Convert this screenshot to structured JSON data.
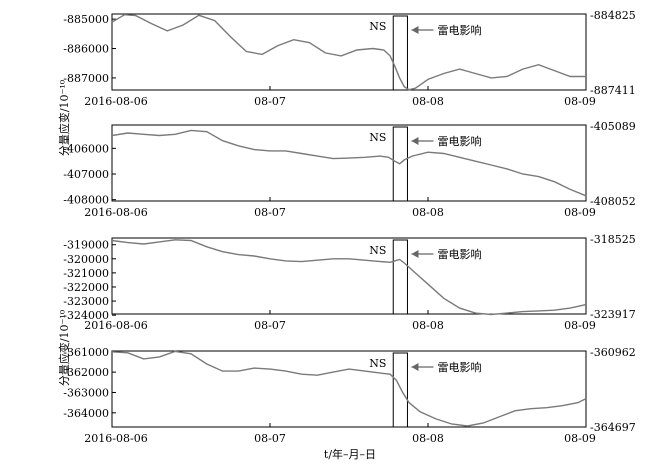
{
  "ylabel": "分量应变/10⁻¹⁰",
  "xlabel": "t/年–月–日",
  "chart_data": [
    {
      "type": "line",
      "x_ticks": [
        "2016-08-06",
        "08-07",
        "08-08",
        "08-09"
      ],
      "xlim": [
        "2016-08-06",
        "2016-08-09"
      ],
      "ylim": [
        -887411,
        -884825
      ],
      "y_ticks": [
        -885000,
        -886000,
        -887000
      ],
      "right_ticks": [
        "-884825",
        "-887411"
      ],
      "ns_label": "NS",
      "annotation": "雷电影响",
      "ns_window": [
        1.78,
        1.87
      ],
      "series": [
        {
          "x": [
            0,
            0.08,
            0.15,
            0.25,
            0.35,
            0.45,
            0.55,
            0.65,
            0.75,
            0.85,
            0.95,
            1.05,
            1.15,
            1.25,
            1.35,
            1.45,
            1.55,
            1.65,
            1.72,
            1.76,
            1.79,
            1.82,
            1.85,
            1.88,
            1.92,
            1.96,
            2.0,
            2.1,
            2.2,
            2.3,
            2.4,
            2.5,
            2.6,
            2.7,
            2.8,
            2.9,
            3.0
          ],
          "y": [
            -885100,
            -884850,
            -884880,
            -885150,
            -885400,
            -885200,
            -884870,
            -885050,
            -885600,
            -886100,
            -886200,
            -885900,
            -885700,
            -885800,
            -886150,
            -886250,
            -886050,
            -886000,
            -886050,
            -886250,
            -886600,
            -887000,
            -887300,
            -887400,
            -887350,
            -887200,
            -887050,
            -886850,
            -886700,
            -886850,
            -887000,
            -886950,
            -886700,
            -886550,
            -886750,
            -886950,
            -886950
          ]
        }
      ]
    },
    {
      "type": "line",
      "x_ticks": [
        "2016-08-06",
        "08-07",
        "08-08",
        "08-09"
      ],
      "xlim": [
        "2016-08-06",
        "2016-08-09"
      ],
      "ylim": [
        -408052,
        -405089
      ],
      "y_ticks": [
        -406000,
        -407000,
        -408000
      ],
      "right_ticks": [
        "-405089",
        "-408052"
      ],
      "ns_label": "NS",
      "annotation": "雷电影响",
      "ns_window": [
        1.78,
        1.87
      ],
      "series": [
        {
          "x": [
            0,
            0.1,
            0.2,
            0.3,
            0.4,
            0.5,
            0.6,
            0.7,
            0.8,
            0.9,
            1.0,
            1.1,
            1.2,
            1.3,
            1.4,
            1.5,
            1.6,
            1.7,
            1.75,
            1.79,
            1.82,
            1.85,
            1.9,
            2.0,
            2.1,
            2.2,
            2.3,
            2.4,
            2.5,
            2.6,
            2.7,
            2.8,
            2.9,
            3.0
          ],
          "y": [
            -405500,
            -405400,
            -405450,
            -405500,
            -405450,
            -405300,
            -405350,
            -405700,
            -405900,
            -406050,
            -406100,
            -406100,
            -406200,
            -406300,
            -406400,
            -406380,
            -406350,
            -406300,
            -406350,
            -406500,
            -406600,
            -406450,
            -406300,
            -406150,
            -406200,
            -406350,
            -406500,
            -406650,
            -406800,
            -407000,
            -407100,
            -407300,
            -407600,
            -407850
          ]
        }
      ]
    },
    {
      "type": "line",
      "x_ticks": [
        "2016-08-06",
        "08-07",
        "08-08",
        "08-09"
      ],
      "xlim": [
        "2016-08-06",
        "2016-08-09"
      ],
      "ylim": [
        -323917,
        -318525
      ],
      "y_ticks": [
        -319000,
        -320000,
        -321000,
        -322000,
        -323000,
        -324000
      ],
      "right_ticks": [
        "-318525",
        "-323917"
      ],
      "ns_label": "NS",
      "annotation": "雷电影响",
      "ns_window": [
        1.78,
        1.87
      ],
      "series": [
        {
          "x": [
            0,
            0.1,
            0.2,
            0.3,
            0.4,
            0.5,
            0.6,
            0.7,
            0.8,
            0.9,
            1.0,
            1.1,
            1.2,
            1.3,
            1.4,
            1.5,
            1.6,
            1.7,
            1.76,
            1.79,
            1.82,
            1.85,
            1.9,
            2.0,
            2.1,
            2.2,
            2.3,
            2.4,
            2.5,
            2.6,
            2.7,
            2.8,
            2.9,
            3.0
          ],
          "y": [
            -318700,
            -318850,
            -318950,
            -318800,
            -318650,
            -318700,
            -319150,
            -319500,
            -319700,
            -319800,
            -320000,
            -320150,
            -320200,
            -320100,
            -320000,
            -320000,
            -320100,
            -320200,
            -320250,
            -320150,
            -320050,
            -320300,
            -320800,
            -321800,
            -322800,
            -323500,
            -323850,
            -323950,
            -323850,
            -323750,
            -323700,
            -323650,
            -323500,
            -323250
          ]
        }
      ]
    },
    {
      "type": "line",
      "x_ticks": [
        "2016-08-06",
        "08-07",
        "08-08",
        "08-09"
      ],
      "xlim": [
        "2016-08-06",
        "2016-08-09"
      ],
      "ylim": [
        -364697,
        -360962
      ],
      "y_ticks": [
        -361000,
        -362000,
        -363000,
        -364000
      ],
      "right_ticks": [
        "-360962",
        "-364697"
      ],
      "ns_label": "NS",
      "annotation": "雷电影响",
      "ns_window": [
        1.78,
        1.87
      ],
      "series": [
        {
          "x": [
            0,
            0.1,
            0.2,
            0.3,
            0.4,
            0.5,
            0.6,
            0.7,
            0.8,
            0.9,
            1.0,
            1.1,
            1.2,
            1.3,
            1.4,
            1.5,
            1.6,
            1.7,
            1.76,
            1.8,
            1.84,
            1.88,
            1.95,
            2.05,
            2.15,
            2.25,
            2.35,
            2.45,
            2.55,
            2.65,
            2.75,
            2.85,
            2.95,
            3.0
          ],
          "y": [
            -361000,
            -361050,
            -361350,
            -361250,
            -360980,
            -361100,
            -361600,
            -361950,
            -361950,
            -361800,
            -361850,
            -361950,
            -362100,
            -362150,
            -362000,
            -361850,
            -361950,
            -362050,
            -362100,
            -362400,
            -363000,
            -363500,
            -363950,
            -364300,
            -364550,
            -364650,
            -364500,
            -364200,
            -363900,
            -363800,
            -363750,
            -363650,
            -363500,
            -363300
          ]
        }
      ]
    }
  ]
}
